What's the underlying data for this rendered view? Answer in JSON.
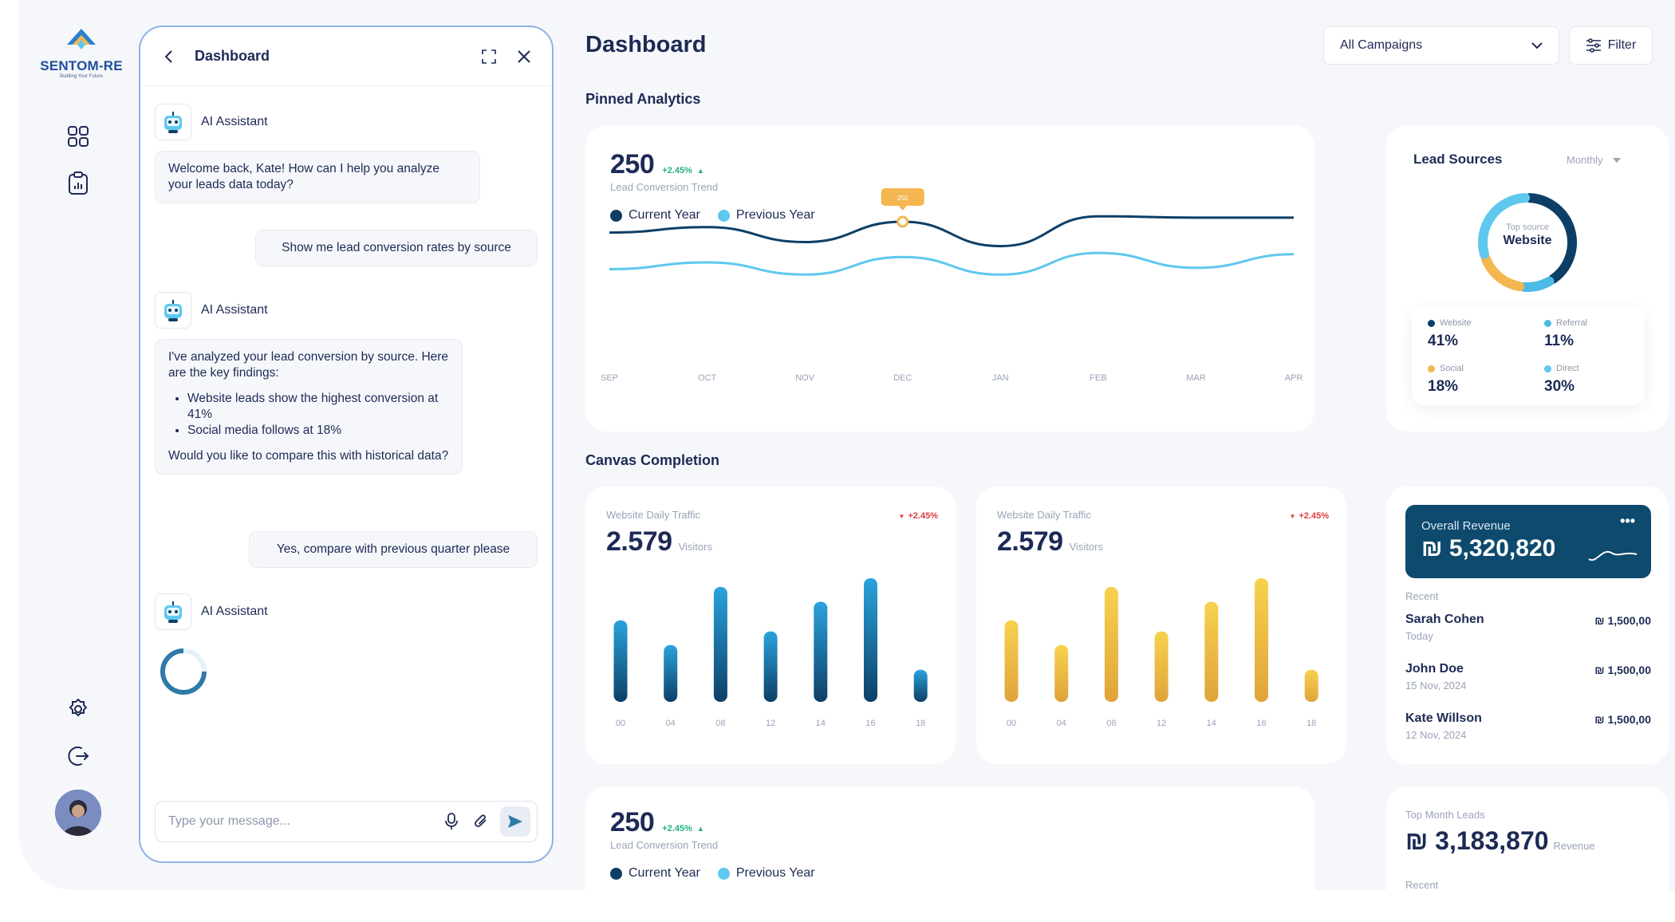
{
  "brand": {
    "name": "SENTOM-RE",
    "tagline": "Building Your Future"
  },
  "sidebar": {
    "icons": [
      "grid-icon",
      "clipboard-chart-icon",
      "gear-icon",
      "logout-icon"
    ]
  },
  "chat": {
    "title": "Dashboard",
    "assistant_name": "AI Assistant",
    "messages": [
      {
        "from": "assistant",
        "text": "Welcome back, Kate! How can I help you analyze your leads data today?"
      },
      {
        "from": "user",
        "text": "Show me lead conversion rates by source"
      },
      {
        "from": "assistant",
        "intro": "I've analyzed your lead conversion by source. Here are the key findings:",
        "bullets": [
          "Website leads show the highest conversion at 41%",
          "Social media follows at 18%"
        ],
        "outro": "Would you like to compare this with historical data?"
      },
      {
        "from": "user",
        "text": "Yes, compare with previous quarter please"
      },
      {
        "from": "assistant",
        "text": ""
      }
    ],
    "input_placeholder": "Type your message..."
  },
  "header": {
    "title": "Dashboard",
    "campaign_select": "All Campaigns",
    "filter_label": "Filter"
  },
  "sections": {
    "pinned": "Pinned Analytics",
    "canvas": "Canvas Completion"
  },
  "conversion_card": {
    "value": "250",
    "delta": "+2.45%",
    "label": "Lead Conversion Trend",
    "legend_current": "Current Year",
    "legend_previous": "Previous Year",
    "marker_label": "250"
  },
  "conversion_card_2": {
    "value": "250",
    "delta": "+2.45%",
    "label": "Lead Conversion Trend",
    "legend_current": "Current Year",
    "legend_previous": "Previous Year"
  },
  "lead_sources": {
    "title": "Lead Sources",
    "period": "Monthly",
    "center_caption": "Top source",
    "center_value": "Website",
    "items": [
      {
        "name": "Website",
        "value": "41%",
        "color": "#0d3f66"
      },
      {
        "name": "Referral",
        "value": "11%",
        "color": "#4dbbe6"
      },
      {
        "name": "Social",
        "value": "18%",
        "color": "#f4b650"
      },
      {
        "name": "Direct",
        "value": "30%",
        "color": "#5ec8ee"
      }
    ]
  },
  "traffic_blue": {
    "title": "Website Daily Traffic",
    "value": "2.579",
    "unit": "Visitors",
    "delta": "+2.45%"
  },
  "traffic_yellow": {
    "title": "Website Daily Traffic",
    "value": "2.579",
    "unit": "Visitors",
    "delta": "+2.45%"
  },
  "revenue": {
    "label": "Overall Revenue",
    "value": "₪ 5,320,820",
    "recent_label": "Recent",
    "recent": [
      {
        "name": "Sarah Cohen",
        "date": "Today",
        "amount": "₪ 1,500,00"
      },
      {
        "name": "John Doe",
        "date": "15 Nov, 2024",
        "amount": "₪ 1,500,00"
      },
      {
        "name": "Kate Willson",
        "date": "12 Nov, 2024",
        "amount": "₪ 1,500,00"
      }
    ]
  },
  "top_month": {
    "label": "Top Month Leads",
    "value": "₪ 3,183,870",
    "unit": "Revenue",
    "recent_label": "Recent"
  },
  "chart_data": [
    {
      "type": "line",
      "x": [
        "SEP",
        "OCT",
        "NOV",
        "DEC",
        "JAN",
        "FEB",
        "MAR",
        "APR"
      ],
      "series": [
        {
          "name": "Current Year",
          "values": [
            62,
            66,
            55,
            70,
            52,
            74,
            73,
            73
          ],
          "color": "#0d3f66"
        },
        {
          "name": "Previous Year",
          "values": [
            35,
            40,
            31,
            44,
            31,
            47,
            36,
            46
          ],
          "color": "#5ec8ee"
        }
      ],
      "ylim": [
        0,
        100
      ],
      "marker": {
        "x": "DEC",
        "label": "250"
      }
    },
    {
      "type": "bar",
      "categories": [
        "00",
        "04",
        "08",
        "12",
        "14",
        "16",
        "18"
      ],
      "values": [
        66,
        46,
        93,
        57,
        81,
        100,
        26
      ],
      "ylim": [
        0,
        100
      ],
      "color": "#0d4a6e"
    },
    {
      "type": "bar",
      "categories": [
        "00",
        "04",
        "08",
        "12",
        "14",
        "16",
        "18"
      ],
      "values": [
        66,
        46,
        93,
        57,
        81,
        100,
        26
      ],
      "ylim": [
        0,
        100
      ],
      "color": "#e0a33a"
    },
    {
      "type": "pie",
      "categories": [
        "Website",
        "Referral",
        "Social",
        "Direct"
      ],
      "values": [
        41,
        11,
        18,
        30
      ]
    }
  ]
}
